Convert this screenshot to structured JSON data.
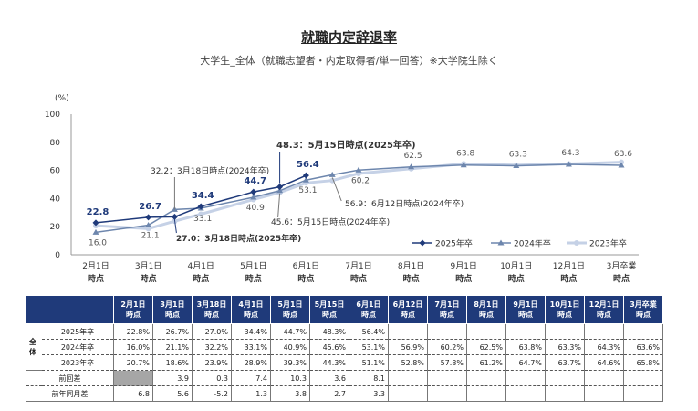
{
  "title": "就職内定辞退率",
  "subtitle": "大学生_全体（就職志望者・内定取得者/単一回答）※大学院生除く",
  "chart_data": {
    "type": "line",
    "y_unit_label": "(%)",
    "ylim": [
      0,
      100
    ],
    "y_ticks": [
      "0",
      "20",
      "40",
      "60",
      "80",
      "100"
    ],
    "x_ticks": [
      [
        "2月1日",
        "時点"
      ],
      [
        "3月1日",
        "時点"
      ],
      [
        "4月1日",
        "時点"
      ],
      [
        "5月1日",
        "時点"
      ],
      [
        "6月1日",
        "時点"
      ],
      [
        "7月1日",
        "時点"
      ],
      [
        "8月1日",
        "時点"
      ],
      [
        "9月1日",
        "時点"
      ],
      [
        "10月1日",
        "時点"
      ],
      [
        "12月1日",
        "時点"
      ],
      [
        "3月卒業",
        "時点"
      ]
    ],
    "series": [
      {
        "name": "2025年卒",
        "color": "#1f3a7a",
        "points": [
          [
            0,
            22.8
          ],
          [
            1,
            26.7
          ],
          [
            1.5,
            27.0
          ],
          [
            2,
            34.4
          ],
          [
            3,
            44.7
          ],
          [
            3.5,
            48.3
          ],
          [
            4,
            56.4
          ]
        ],
        "labels": [
          "22.8",
          "26.7",
          "",
          "34.4",
          "44.7",
          "",
          "56.4"
        ]
      },
      {
        "name": "2024年卒",
        "color": "#6d86ad",
        "points": [
          [
            0,
            16.0
          ],
          [
            1,
            21.1
          ],
          [
            1.5,
            32.2
          ],
          [
            2,
            33.1
          ],
          [
            3,
            40.9
          ],
          [
            3.5,
            45.6
          ],
          [
            4,
            53.1
          ],
          [
            4.5,
            56.9
          ],
          [
            5,
            60.2
          ],
          [
            6,
            62.5
          ],
          [
            7,
            63.8
          ],
          [
            8,
            63.3
          ],
          [
            9,
            64.3
          ],
          [
            10,
            63.6
          ]
        ],
        "labels": [
          "16.0",
          "21.1",
          "",
          "33.1",
          "40.9",
          "",
          "53.1",
          "",
          "60.2",
          "62.5",
          "63.8",
          "63.3",
          "64.3",
          "63.6"
        ]
      },
      {
        "name": "2023年卒",
        "color": "#c5d1e6",
        "points": [
          [
            0,
            20.7
          ],
          [
            1,
            18.6
          ],
          [
            1.5,
            23.9
          ],
          [
            2,
            28.9
          ],
          [
            3,
            39.3
          ],
          [
            3.5,
            44.3
          ],
          [
            4,
            51.1
          ],
          [
            4.5,
            52.8
          ],
          [
            5,
            57.8
          ],
          [
            6,
            61.2
          ],
          [
            7,
            64.7
          ],
          [
            8,
            63.7
          ],
          [
            9,
            64.6
          ],
          [
            10,
            65.8
          ]
        ],
        "labels": []
      }
    ],
    "annotations": [
      {
        "text": "48.3：5月15日時点(2025年卒)"
      },
      {
        "text": "32.2：3月18日時点(2024年卒)"
      },
      {
        "text": "27.0：3月18日時点(2025年卒)"
      },
      {
        "text": "45.6：5月15日時点(2024年卒)"
      },
      {
        "text": "56.9：6月12日時点(2024年卒)"
      }
    ]
  },
  "table": {
    "side_label": "全体",
    "headers": [
      [
        "2月1日",
        "時点"
      ],
      [
        "3月1日",
        "時点"
      ],
      [
        "3月18日",
        "時点"
      ],
      [
        "4月1日",
        "時点"
      ],
      [
        "5月1日",
        "時点"
      ],
      [
        "5月15日",
        "時点"
      ],
      [
        "6月1日",
        "時点"
      ],
      [
        "6月12日",
        "時点"
      ],
      [
        "7月1日",
        "時点"
      ],
      [
        "8月1日",
        "時点"
      ],
      [
        "9月1日",
        "時点"
      ],
      [
        "10月1日",
        "時点"
      ],
      [
        "12月1日",
        "時点"
      ],
      [
        "3月卒業",
        "時点"
      ]
    ],
    "rows": [
      {
        "label": "2025年卒",
        "cells": [
          "22.8%",
          "26.7%",
          "27.0%",
          "34.4%",
          "44.7%",
          "48.3%",
          "56.4%",
          "",
          "",
          "",
          "",
          "",
          "",
          ""
        ]
      },
      {
        "label": "2024年卒",
        "cells": [
          "16.0%",
          "21.1%",
          "32.2%",
          "33.1%",
          "40.9%",
          "45.6%",
          "53.1%",
          "56.9%",
          "60.2%",
          "62.5%",
          "63.8%",
          "63.3%",
          "64.3%",
          "63.6%"
        ]
      },
      {
        "label": "2023年卒",
        "cells": [
          "20.7%",
          "18.6%",
          "23.9%",
          "28.9%",
          "39.3%",
          "44.3%",
          "51.1%",
          "52.8%",
          "57.8%",
          "61.2%",
          "64.7%",
          "63.7%",
          "64.6%",
          "65.8%"
        ]
      },
      {
        "label": "前回差",
        "cells": [
          "",
          "3.9",
          "0.3",
          "7.4",
          "10.3",
          "3.6",
          "8.1",
          "",
          "",
          "",
          "",
          "",
          "",
          ""
        ]
      },
      {
        "label": "前年同月差",
        "cells": [
          "6.8",
          "5.6",
          "-5.2",
          "1.3",
          "3.8",
          "2.7",
          "3.3",
          "",
          "",
          "",
          "",
          "",
          "",
          ""
        ]
      }
    ]
  }
}
